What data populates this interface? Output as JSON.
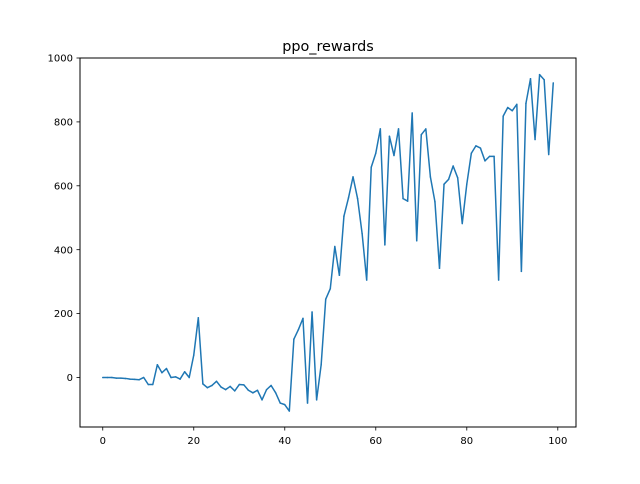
{
  "chart_data": {
    "type": "line",
    "title": "ppo_rewards",
    "xlabel": "",
    "ylabel": "",
    "xlim": [
      -5,
      104
    ],
    "ylim": [
      -155,
      1000
    ],
    "x_ticks": [
      0,
      20,
      40,
      60,
      80,
      100
    ],
    "y_ticks": [
      0,
      200,
      400,
      600,
      800,
      1000
    ],
    "grid": false,
    "line_color": "#1f77b4",
    "series": [
      {
        "x": [
          0,
          1,
          2,
          3,
          4,
          5,
          6,
          7,
          8,
          9,
          10,
          11,
          12,
          13,
          14,
          15,
          16,
          17,
          18,
          19,
          20,
          21,
          22,
          23,
          24,
          25,
          26,
          27,
          28,
          29,
          30,
          31,
          32,
          33,
          34,
          35,
          36,
          37,
          38,
          39,
          40,
          41,
          42,
          43,
          44,
          45,
          46,
          47,
          48,
          49,
          50,
          51,
          52,
          53,
          54,
          55,
          56,
          57,
          58,
          59,
          60,
          61,
          62,
          63,
          64,
          65,
          66,
          67,
          68,
          69,
          70,
          71,
          72,
          73,
          74,
          75,
          76,
          77,
          78,
          79,
          80,
          81,
          82,
          83,
          84,
          85,
          86,
          87,
          88,
          89,
          90,
          91,
          92,
          93,
          94,
          95,
          96,
          97,
          98,
          99
        ],
        "values": [
          0,
          0,
          0,
          -2,
          -2,
          -3,
          -5,
          -6,
          -7,
          0,
          -22,
          -22,
          40,
          15,
          28,
          0,
          2,
          -5,
          18,
          0,
          70,
          187,
          -20,
          -32,
          -25,
          -12,
          -30,
          -38,
          -28,
          -42,
          -22,
          -23,
          -40,
          -48,
          -40,
          -70,
          -38,
          -25,
          -48,
          -80,
          -85,
          -105,
          120,
          150,
          185,
          -80,
          205,
          -70,
          40,
          245,
          278,
          410,
          320,
          505,
          562,
          628,
          560,
          450,
          305,
          658,
          702,
          778,
          415,
          755,
          695,
          778,
          560,
          552,
          828,
          428,
          760,
          778,
          628,
          550,
          342,
          605,
          620,
          662,
          625,
          482,
          605,
          702,
          725,
          718,
          678,
          692,
          692,
          305,
          818,
          845,
          835,
          855,
          332,
          858,
          935,
          745,
          948,
          932,
          698,
          922
        ]
      }
    ]
  }
}
